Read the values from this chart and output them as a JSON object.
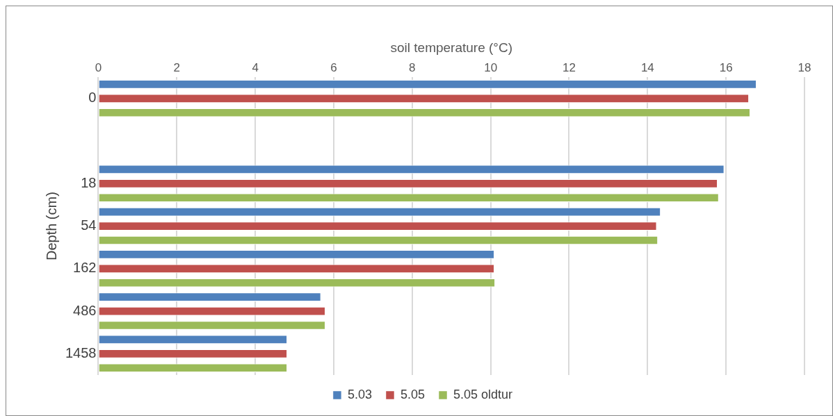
{
  "chart_data": {
    "type": "bar",
    "orientation": "horizontal",
    "xlabel": "soil temperature (°C)",
    "ylabel": "Depth (cm)",
    "categories": [
      "0",
      null,
      "18",
      "54",
      "162",
      "486",
      "1458"
    ],
    "series": [
      {
        "name": "5.03",
        "color": "#4f81bd",
        "values": [
          16.76,
          null,
          15.94,
          14.32,
          10.08,
          5.66,
          4.8
        ]
      },
      {
        "name": "5.05",
        "color": "#c0504d",
        "values": [
          16.57,
          null,
          15.77,
          14.22,
          10.08,
          5.77,
          4.8
        ]
      },
      {
        "name": "5.05 oldtur",
        "color": "#9bbb59",
        "values": [
          16.6,
          null,
          15.8,
          14.25,
          10.1,
          5.77,
          4.8
        ]
      }
    ],
    "xlim": [
      0,
      18
    ],
    "xticks": [
      0,
      2,
      4,
      6,
      8,
      10,
      12,
      14,
      16,
      18
    ],
    "grid": "x",
    "legend": "bottom"
  }
}
